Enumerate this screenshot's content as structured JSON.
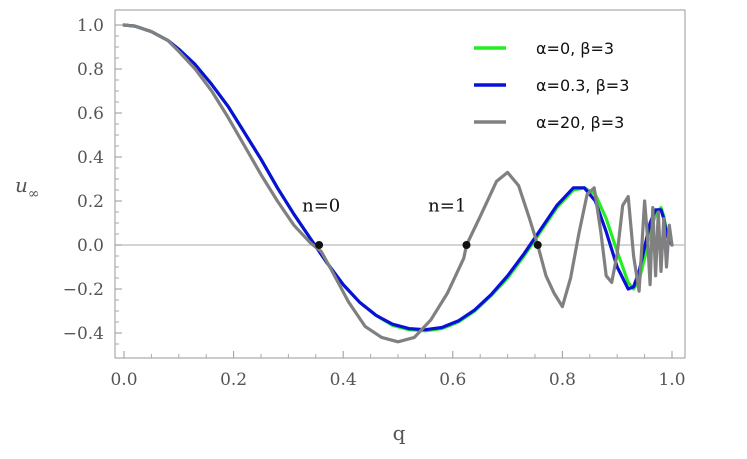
{
  "chart_data": {
    "type": "line",
    "xlabel": "q",
    "ylabel_main": "u",
    "ylabel_sub": "∞",
    "xlim": [
      0.0,
      1.0
    ],
    "ylim": [
      -0.5,
      1.08
    ],
    "x_ticks": [
      "0.0",
      "0.2",
      "0.4",
      "0.6",
      "0.8",
      "1.0"
    ],
    "y_ticks": [
      "−0.4",
      "−0.2",
      "0.0",
      "0.2",
      "0.4",
      "0.6",
      "0.8",
      "1.0"
    ],
    "zero_line": true,
    "legend_position": "top-right",
    "series": [
      {
        "name": "α=0,  β=3",
        "color": "#22ee22",
        "x": [
          0.0,
          0.02,
          0.05,
          0.08,
          0.1,
          0.13,
          0.16,
          0.19,
          0.22,
          0.25,
          0.28,
          0.31,
          0.34,
          0.37,
          0.4,
          0.43,
          0.46,
          0.49,
          0.52,
          0.55,
          0.58,
          0.61,
          0.64,
          0.67,
          0.7,
          0.73,
          0.76,
          0.79,
          0.82,
          0.84,
          0.86,
          0.88,
          0.9,
          0.92,
          0.93,
          0.94,
          0.95,
          0.96,
          0.97,
          0.98,
          0.985,
          0.99,
          1.0
        ],
        "y": [
          1.0,
          0.995,
          0.97,
          0.93,
          0.89,
          0.82,
          0.73,
          0.63,
          0.51,
          0.39,
          0.26,
          0.14,
          0.03,
          -0.08,
          -0.18,
          -0.26,
          -0.32,
          -0.365,
          -0.385,
          -0.39,
          -0.38,
          -0.35,
          -0.3,
          -0.23,
          -0.15,
          -0.05,
          0.06,
          0.17,
          0.25,
          0.26,
          0.23,
          0.12,
          -0.03,
          -0.17,
          -0.2,
          -0.16,
          -0.06,
          0.06,
          0.14,
          0.17,
          0.13,
          0.06,
          0.0
        ]
      },
      {
        "name": "α=0.3,  β=3",
        "color": "#0a10d8",
        "x": [
          0.0,
          0.02,
          0.05,
          0.08,
          0.1,
          0.13,
          0.16,
          0.19,
          0.22,
          0.25,
          0.28,
          0.31,
          0.34,
          0.37,
          0.4,
          0.43,
          0.46,
          0.49,
          0.52,
          0.55,
          0.58,
          0.61,
          0.64,
          0.67,
          0.7,
          0.73,
          0.76,
          0.79,
          0.82,
          0.84,
          0.86,
          0.88,
          0.9,
          0.92,
          0.93,
          0.94,
          0.95,
          0.96,
          0.97,
          0.98,
          0.985,
          0.99,
          1.0
        ],
        "y": [
          1.0,
          0.995,
          0.97,
          0.93,
          0.89,
          0.82,
          0.73,
          0.63,
          0.51,
          0.39,
          0.26,
          0.14,
          0.03,
          -0.08,
          -0.18,
          -0.26,
          -0.32,
          -0.36,
          -0.38,
          -0.385,
          -0.375,
          -0.345,
          -0.295,
          -0.225,
          -0.14,
          -0.04,
          0.07,
          0.18,
          0.26,
          0.26,
          0.2,
          0.06,
          -0.1,
          -0.2,
          -0.19,
          -0.12,
          -0.01,
          0.1,
          0.16,
          0.16,
          0.12,
          0.05,
          0.0
        ]
      },
      {
        "name": "α=20,  β=3",
        "color": "#808080",
        "x": [
          0.0,
          0.02,
          0.05,
          0.08,
          0.1,
          0.13,
          0.16,
          0.19,
          0.22,
          0.25,
          0.28,
          0.31,
          0.34,
          0.36,
          0.38,
          0.41,
          0.44,
          0.47,
          0.5,
          0.53,
          0.56,
          0.59,
          0.62,
          0.625,
          0.65,
          0.68,
          0.7,
          0.72,
          0.74,
          0.755,
          0.77,
          0.785,
          0.8,
          0.815,
          0.83,
          0.845,
          0.858,
          0.87,
          0.88,
          0.89,
          0.9,
          0.91,
          0.92,
          0.93,
          0.94,
          0.95,
          0.955,
          0.96,
          0.965,
          0.97,
          0.975,
          0.98,
          0.985,
          0.99,
          0.995,
          1.0
        ],
        "y": [
          1.0,
          0.995,
          0.97,
          0.93,
          0.88,
          0.8,
          0.7,
          0.58,
          0.45,
          0.32,
          0.2,
          0.09,
          0.01,
          -0.03,
          -0.12,
          -0.26,
          -0.37,
          -0.42,
          -0.44,
          -0.42,
          -0.34,
          -0.22,
          -0.06,
          0.0,
          0.13,
          0.29,
          0.33,
          0.27,
          0.12,
          0.0,
          -0.14,
          -0.22,
          -0.28,
          -0.15,
          0.05,
          0.23,
          0.26,
          0.06,
          -0.14,
          -0.17,
          -0.04,
          0.18,
          0.22,
          -0.05,
          -0.21,
          0.2,
          0.05,
          -0.18,
          0.17,
          -0.14,
          0.15,
          -0.12,
          0.12,
          -0.1,
          0.09,
          0.0
        ]
      }
    ],
    "annotations": [
      {
        "text": "n=0",
        "label_x": 0.4,
        "label_y": 0.18,
        "point_x": 0.356,
        "point_y": 0.0
      },
      {
        "text": "n=1",
        "label_x": 0.63,
        "label_y": 0.18,
        "point_x": 0.625,
        "point_y": 0.0
      },
      {
        "text": "",
        "point_x": 0.755,
        "point_y": 0.0
      }
    ]
  }
}
